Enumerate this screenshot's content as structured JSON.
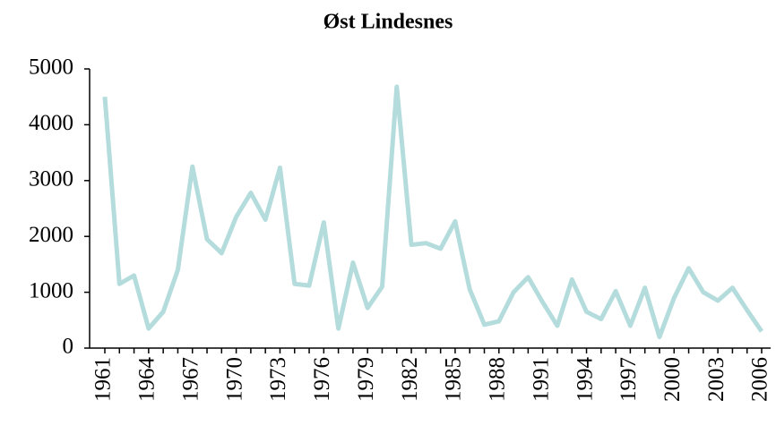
{
  "chart_data": {
    "type": "line",
    "title": "Øst Lindesnes",
    "categories": [
      "1961",
      null,
      null,
      "1964",
      null,
      null,
      "1967",
      null,
      null,
      "1970",
      null,
      null,
      "1973",
      null,
      null,
      "1976",
      null,
      null,
      "1979",
      null,
      null,
      "1982",
      null,
      null,
      "1985",
      null,
      null,
      "1988",
      null,
      null,
      "1991",
      null,
      null,
      "1994",
      null,
      null,
      "1997",
      null,
      null,
      "2000",
      null,
      null,
      "2003",
      null,
      null,
      "2006"
    ],
    "values": [
      4500,
      1150,
      1300,
      350,
      650,
      1400,
      3250,
      1950,
      1700,
      2350,
      2780,
      2300,
      3230,
      1150,
      1120,
      2250,
      350,
      1530,
      720,
      1100,
      4680,
      1850,
      1880,
      1780,
      2270,
      1050,
      420,
      480,
      1000,
      1270,
      820,
      400,
      1230,
      650,
      520,
      1020,
      400,
      1080,
      200,
      900,
      1430,
      1000,
      850,
      1080,
      680,
      300
    ],
    "color": "#b4dcdc",
    "ylim": [
      0,
      5000
    ],
    "yticks": [
      0,
      1000,
      2000,
      3000,
      4000,
      5000
    ],
    "grid": false
  }
}
